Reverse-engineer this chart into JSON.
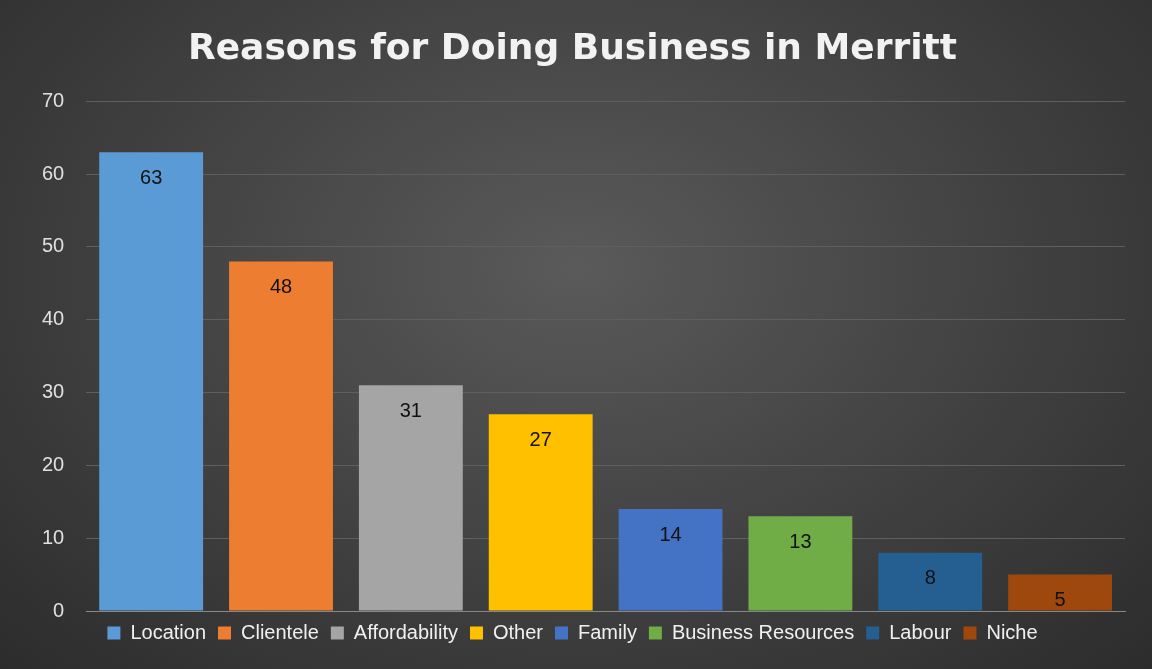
{
  "chart_data": {
    "type": "bar",
    "title": "Reasons for Doing Business in Merritt",
    "categories": [
      null,
      null,
      null,
      null,
      null,
      null,
      null,
      null
    ],
    "series": [
      {
        "name": "Location",
        "color": "#5b9bd5",
        "values": [
          63,
          null,
          null,
          null,
          null,
          null,
          null,
          null
        ]
      },
      {
        "name": "Clientele",
        "color": "#ed7d31",
        "values": [
          null,
          48,
          null,
          null,
          null,
          null,
          null,
          null
        ]
      },
      {
        "name": "Affordability",
        "color": "#a5a5a5",
        "values": [
          null,
          null,
          31,
          null,
          null,
          null,
          null,
          null
        ]
      },
      {
        "name": "Other",
        "color": "#ffc000",
        "values": [
          null,
          null,
          null,
          27,
          null,
          null,
          null,
          null
        ]
      },
      {
        "name": "Family",
        "color": "#4472c4",
        "values": [
          null,
          null,
          null,
          null,
          14,
          null,
          null,
          null
        ]
      },
      {
        "name": "Business Resources",
        "color": "#70ad47",
        "values": [
          null,
          null,
          null,
          null,
          null,
          13,
          null,
          null
        ]
      },
      {
        "name": "Labour",
        "color": "#255e91",
        "values": [
          null,
          null,
          null,
          null,
          null,
          null,
          8,
          null
        ]
      },
      {
        "name": "Niche",
        "color": "#9e480e",
        "values": [
          null,
          null,
          null,
          null,
          null,
          null,
          null,
          5
        ]
      }
    ],
    "ylim": [
      0,
      70
    ],
    "yticks": [
      0,
      10,
      20,
      30,
      40,
      50,
      60,
      70
    ],
    "grid": "y",
    "legend": "bottom",
    "tick_labels": "y",
    "data_labels": true
  }
}
